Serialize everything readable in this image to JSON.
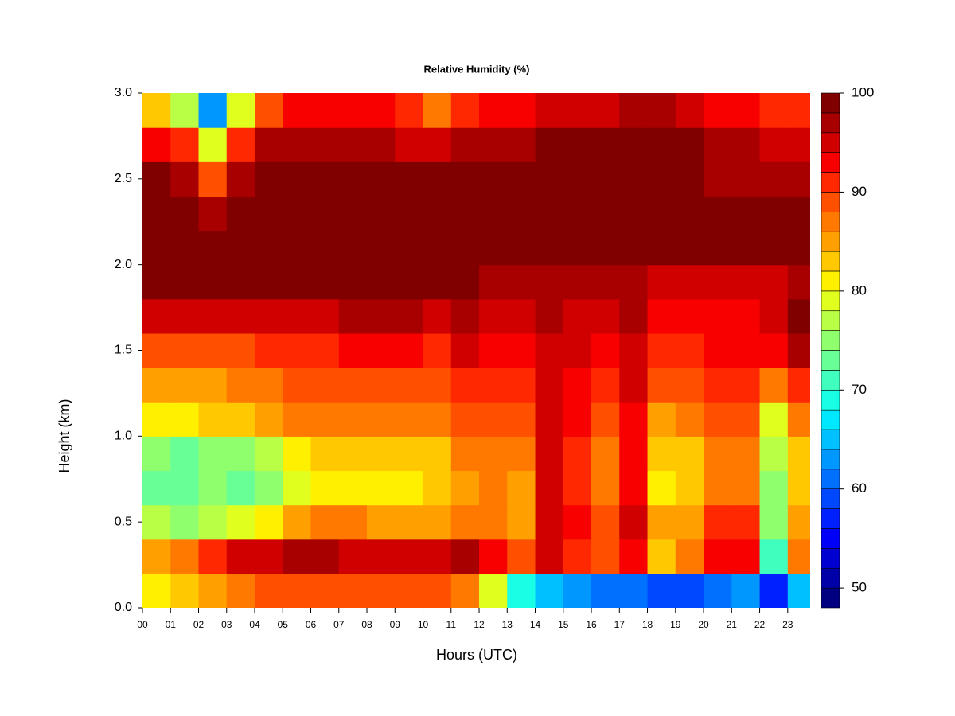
{
  "chart_data": {
    "type": "heatmap",
    "title": "Relative Humidity (%)",
    "xlabel": "Hours (UTC)",
    "ylabel": "Height (km)",
    "x": [
      0,
      1,
      2,
      3,
      4,
      5,
      6,
      7,
      8,
      9,
      10,
      11,
      12,
      13,
      14,
      15,
      16,
      17,
      18,
      19,
      20,
      21,
      22,
      23
    ],
    "y": [
      0,
      0.2,
      0.4,
      0.6,
      0.8,
      1.0,
      1.2,
      1.4,
      1.6,
      1.8,
      2.0,
      2.2,
      2.4,
      2.6,
      2.8
    ],
    "xlim": [
      0,
      23.8
    ],
    "ylim": [
      0,
      3
    ],
    "xticks": [
      {
        "value": 0,
        "label": "00"
      },
      {
        "value": 1,
        "label": "01"
      },
      {
        "value": 2,
        "label": "02"
      },
      {
        "value": 3,
        "label": "03"
      },
      {
        "value": 4,
        "label": "04"
      },
      {
        "value": 5,
        "label": "05"
      },
      {
        "value": 6,
        "label": "06"
      },
      {
        "value": 7,
        "label": "07"
      },
      {
        "value": 8,
        "label": "08"
      },
      {
        "value": 9,
        "label": "09"
      },
      10,
      11,
      12,
      13,
      14,
      15,
      16,
      17,
      18,
      19,
      20,
      21,
      22,
      23
    ],
    "yticks": [
      {
        "value": 0,
        "label": "0.0"
      },
      0.5,
      {
        "value": 1,
        "label": "1.0"
      },
      1.5,
      {
        "value": 2,
        "label": "2.0"
      },
      2.5,
      {
        "value": 3,
        "label": "3.0"
      }
    ],
    "z": [
      [
        80,
        82,
        84,
        86,
        88,
        88,
        88,
        88,
        88,
        88,
        88,
        86,
        78,
        68,
        64,
        62,
        60,
        60,
        58,
        58,
        60,
        62,
        56,
        64
      ],
      [
        84,
        86,
        90,
        94,
        94,
        96,
        96,
        94,
        94,
        94,
        94,
        96,
        92,
        88,
        94,
        90,
        88,
        92,
        82,
        86,
        92,
        92,
        70,
        86
      ],
      [
        76,
        74,
        76,
        78,
        80,
        84,
        86,
        86,
        84,
        84,
        84,
        86,
        86,
        84,
        94,
        92,
        88,
        94,
        84,
        84,
        90,
        90,
        74,
        84
      ],
      [
        72,
        72,
        74,
        72,
        74,
        78,
        80,
        80,
        80,
        80,
        82,
        84,
        86,
        84,
        94,
        90,
        86,
        92,
        80,
        82,
        86,
        86,
        74,
        82
      ],
      [
        74,
        72,
        74,
        74,
        76,
        80,
        82,
        82,
        82,
        82,
        82,
        86,
        86,
        86,
        94,
        90,
        86,
        92,
        82,
        82,
        86,
        86,
        76,
        82
      ],
      [
        80,
        80,
        82,
        82,
        84,
        86,
        86,
        86,
        86,
        86,
        86,
        88,
        88,
        88,
        94,
        92,
        88,
        92,
        84,
        86,
        88,
        88,
        78,
        86
      ],
      [
        84,
        84,
        84,
        86,
        86,
        88,
        88,
        88,
        88,
        88,
        88,
        90,
        90,
        90,
        94,
        92,
        90,
        94,
        88,
        88,
        90,
        90,
        86,
        90
      ],
      [
        88,
        88,
        88,
        88,
        90,
        90,
        90,
        92,
        92,
        92,
        90,
        94,
        92,
        92,
        94,
        94,
        92,
        94,
        90,
        90,
        92,
        92,
        92,
        96
      ],
      [
        94,
        94,
        94,
        94,
        94,
        94,
        94,
        96,
        96,
        96,
        94,
        96,
        94,
        94,
        96,
        94,
        94,
        96,
        92,
        92,
        92,
        92,
        94,
        98
      ],
      [
        98,
        98,
        98,
        98,
        98,
        98,
        98,
        98,
        98,
        98,
        98,
        98,
        96,
        96,
        96,
        96,
        96,
        96,
        94,
        94,
        94,
        94,
        94,
        96
      ],
      [
        100,
        100,
        100,
        100,
        100,
        100,
        100,
        100,
        100,
        100,
        100,
        100,
        100,
        100,
        100,
        100,
        100,
        100,
        98,
        98,
        98,
        98,
        98,
        98
      ],
      [
        100,
        100,
        96,
        100,
        100,
        100,
        100,
        100,
        100,
        100,
        100,
        100,
        100,
        100,
        100,
        100,
        100,
        100,
        98,
        98,
        98,
        98,
        98,
        98
      ],
      [
        98,
        96,
        88,
        96,
        98,
        98,
        98,
        98,
        98,
        98,
        98,
        98,
        98,
        98,
        98,
        98,
        98,
        98,
        98,
        98,
        96,
        96,
        96,
        96
      ],
      [
        92,
        90,
        78,
        90,
        96,
        96,
        96,
        96,
        96,
        94,
        94,
        96,
        96,
        96,
        98,
        98,
        98,
        98,
        98,
        98,
        96,
        96,
        94,
        94
      ],
      [
        82,
        76,
        62,
        78,
        88,
        92,
        92,
        92,
        92,
        90,
        86,
        90,
        92,
        92,
        94,
        94,
        94,
        96,
        96,
        94,
        92,
        92,
        90,
        90
      ]
    ],
    "zlevels": [
      48,
      50,
      52,
      54,
      56,
      58,
      60,
      62,
      64,
      66,
      68,
      70,
      72,
      74,
      76,
      78,
      80,
      82,
      84,
      86,
      88,
      90,
      92,
      94,
      96,
      98,
      100
    ],
    "zticks": [
      50,
      60,
      70,
      80,
      90,
      100
    ],
    "colors": [
      "#000080",
      "#0000a8",
      "#0000d0",
      "#0000f8",
      "#0020ff",
      "#0048ff",
      "#0070ff",
      "#0098ff",
      "#00c0ff",
      "#00e8ff",
      "#18ffe6",
      "#40ffbe",
      "#68ff96",
      "#90ff6e",
      "#b8ff46",
      "#e0ff1e",
      "#fff000",
      "#ffc800",
      "#ffa000",
      "#ff7800",
      "#ff5000",
      "#ff2800",
      "#f80000",
      "#d00000",
      "#a80000",
      "#800000"
    ]
  }
}
